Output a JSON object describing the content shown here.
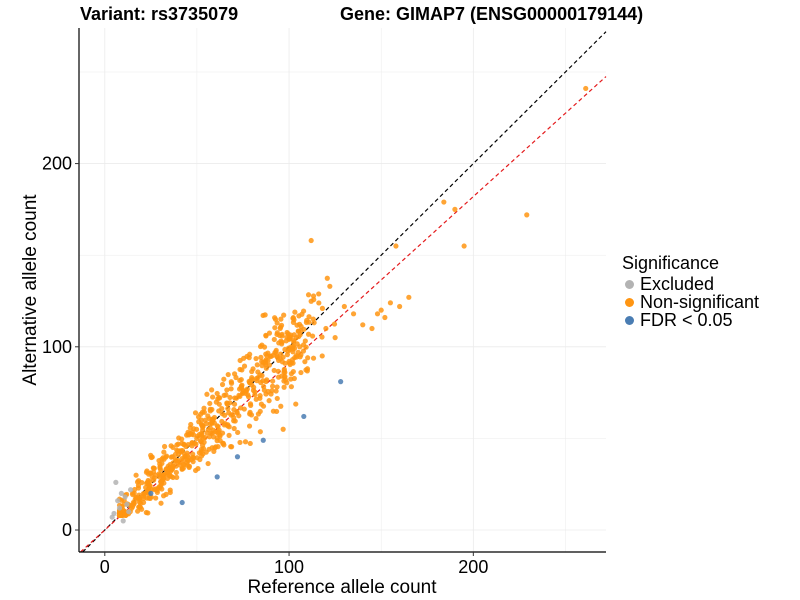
{
  "chart_data": {
    "type": "scatter",
    "title_left": "Variant: rs3735079",
    "title_right": "Gene: GIMAP7 (ENSG00000179144)",
    "xlabel": "Reference allele count",
    "ylabel": "Alternative allele count",
    "xlim": [
      -14,
      272
    ],
    "ylim": [
      -12,
      274
    ],
    "x_ticks": [
      0,
      100,
      200
    ],
    "y_ticks": [
      0,
      100,
      200
    ],
    "reference_lines": [
      {
        "name": "identity",
        "slope": 1.0,
        "intercept": 0,
        "color": "#000000",
        "dash": true
      },
      {
        "name": "fit",
        "slope": 0.91,
        "intercept": 0,
        "color": "#e41a1c",
        "dash": true
      }
    ],
    "legend": {
      "title": "Significance",
      "entries": [
        {
          "label": "Excluded",
          "color": "#b3b3b3"
        },
        {
          "label": "Non-significant",
          "color": "#ff9512"
        },
        {
          "label": "FDR < 0.05",
          "color": "#4a7db3"
        }
      ]
    },
    "series": [
      {
        "name": "Excluded",
        "color": "#b3b3b3",
        "points": [
          [
            6,
            26
          ],
          [
            8,
            12
          ],
          [
            5,
            9
          ],
          [
            10,
            5
          ],
          [
            11,
            18
          ],
          [
            12,
            14
          ],
          [
            9,
            20
          ],
          [
            7,
            16
          ],
          [
            13,
            10
          ],
          [
            4,
            7
          ],
          [
            14,
            22
          ]
        ]
      },
      {
        "name": "Non-significant",
        "color": "#ff9512",
        "points": [
          [
            112,
            158
          ],
          [
            158,
            155
          ],
          [
            184,
            179
          ],
          [
            190,
            175
          ],
          [
            195,
            155
          ],
          [
            229,
            172
          ],
          [
            261,
            241
          ],
          [
            148,
            118
          ],
          [
            150,
            120
          ],
          [
            152,
            116
          ],
          [
            165,
            127
          ],
          [
            160,
            122
          ],
          [
            155,
            124
          ],
          [
            140,
            112
          ],
          [
            135,
            118
          ],
          [
            145,
            110
          ],
          [
            130,
            122
          ],
          [
            125,
            105
          ],
          [
            120,
            110
          ],
          [
            118,
            95
          ],
          [
            110,
            88
          ],
          [
            105,
            97
          ],
          [
            102,
            100
          ],
          [
            100,
            92
          ],
          [
            96,
            84
          ],
          [
            92,
            104
          ],
          [
            88,
            95
          ]
        ]
      },
      {
        "name": "FDR < 0.05",
        "color": "#4a7db3",
        "points": [
          [
            128,
            81
          ],
          [
            108,
            62
          ],
          [
            86,
            49
          ],
          [
            72,
            40
          ],
          [
            61,
            29
          ],
          [
            42,
            15
          ],
          [
            25,
            20
          ]
        ]
      }
    ]
  }
}
